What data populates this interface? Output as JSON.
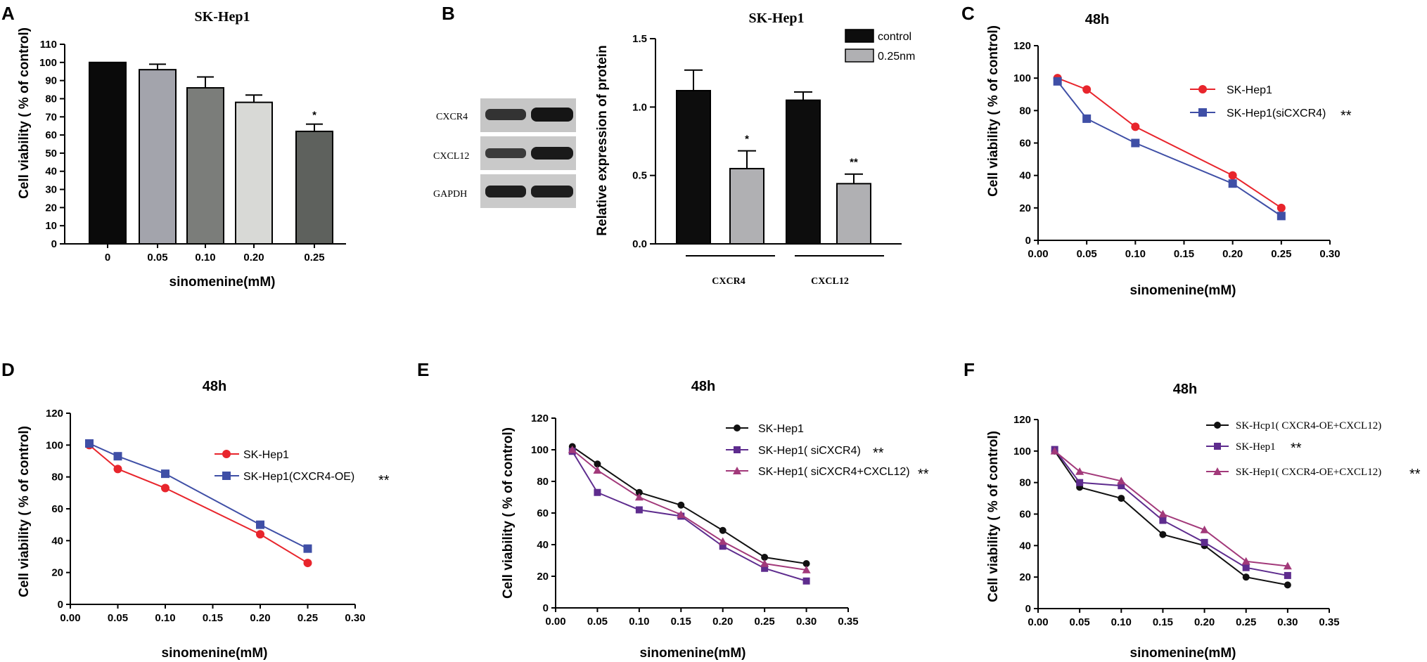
{
  "colors": {
    "bar_a": [
      "#0a0a0a",
      "#a3a4ac",
      "#7b7d7a",
      "#d8d9d6",
      "#5e615d"
    ],
    "control": "#0d0d0d",
    "treated": "#b0b0b3",
    "red": "#e8252c",
    "blue": "#3f4fa6",
    "black": "#111111",
    "purple": "#5e2c8e",
    "magenta": "#a2397a"
  },
  "chart_data": [
    {
      "id": "A",
      "panel_label": "A",
      "type": "bar",
      "title": "SK-Hep1",
      "xlabel": "sinomenine(mM)",
      "ylabel": "Cell viability ( % of control)",
      "categories": [
        "0",
        "0.05",
        "0.10",
        "0.20",
        "0.25"
      ],
      "values": [
        100,
        96,
        86,
        78,
        62
      ],
      "errors": [
        0,
        3,
        6,
        4,
        4
      ],
      "annotations": [
        "",
        "",
        "",
        "",
        "*"
      ],
      "ylim": [
        0,
        110
      ],
      "yticks": [
        "0",
        "10",
        "20",
        "30",
        "40",
        "50",
        "60",
        "70",
        "80",
        "90",
        "100",
        "110"
      ]
    },
    {
      "id": "B",
      "panel_label": "B",
      "type": "bar",
      "title": "SK-Hep1",
      "xlabel": "",
      "ylabel": "Relative expression of protein",
      "categories": [
        "CXCR4",
        "CXCL12"
      ],
      "series": [
        {
          "name": "control",
          "values": [
            1.12,
            1.05
          ],
          "errors": [
            0.15,
            0.06
          ],
          "annotations": [
            "",
            ""
          ]
        },
        {
          "name": "0.25nm",
          "values": [
            0.55,
            0.44
          ],
          "errors": [
            0.13,
            0.07
          ],
          "annotations": [
            "*",
            "**"
          ]
        }
      ],
      "ylim": [
        0,
        1.5
      ],
      "yticks": [
        "0.0",
        "0.5",
        "1.0",
        "1.5"
      ],
      "blot_labels": [
        "CXCR4",
        "CXCL12",
        "GAPDH"
      ]
    },
    {
      "id": "C",
      "panel_label": "C",
      "type": "line",
      "title": "48h",
      "xlabel": "sinomenine(mM)",
      "ylabel": "Cell viability ( % of control)",
      "xlim": [
        0,
        0.3
      ],
      "ylim": [
        0,
        120
      ],
      "xticks": [
        "0.00",
        "0.05",
        "0.10",
        "0.15",
        "0.20",
        "0.25",
        "0.30"
      ],
      "yticks": [
        "0",
        "20",
        "40",
        "60",
        "80",
        "100",
        "120"
      ],
      "series": [
        {
          "name": "SK-Hep1",
          "marker": "circle",
          "color": "#e8252c",
          "x": [
            0.02,
            0.05,
            0.1,
            0.2,
            0.25
          ],
          "y": [
            100,
            93,
            70,
            40,
            20
          ],
          "stars": ""
        },
        {
          "name": "SK-Hep1(siCXCR4)",
          "marker": "square",
          "color": "#3f4fa6",
          "x": [
            0.02,
            0.05,
            0.1,
            0.2,
            0.25
          ],
          "y": [
            98,
            75,
            60,
            35,
            15
          ],
          "stars": "**"
        }
      ]
    },
    {
      "id": "D",
      "panel_label": "D",
      "type": "line",
      "title": "48h",
      "xlabel": "sinomenine(mM)",
      "ylabel": "Cell viability ( % of control)",
      "xlim": [
        0,
        0.3
      ],
      "ylim": [
        0,
        120
      ],
      "xticks": [
        "0.00",
        "0.05",
        "0.10",
        "0.15",
        "0.20",
        "0.25",
        "0.30"
      ],
      "yticks": [
        "0",
        "20",
        "40",
        "60",
        "80",
        "100",
        "120"
      ],
      "series": [
        {
          "name": "SK-Hep1",
          "marker": "circle",
          "color": "#e8252c",
          "x": [
            0.02,
            0.05,
            0.1,
            0.2,
            0.25
          ],
          "y": [
            100,
            85,
            73,
            44,
            26
          ],
          "stars": ""
        },
        {
          "name": "SK-Hep1(CXCR4-OE)",
          "marker": "square",
          "color": "#3f4fa6",
          "x": [
            0.02,
            0.05,
            0.1,
            0.2,
            0.25
          ],
          "y": [
            101,
            93,
            82,
            50,
            35
          ],
          "stars": "**"
        }
      ]
    },
    {
      "id": "E",
      "panel_label": "E",
      "type": "line",
      "title": "48h",
      "xlabel": "sinomenine(mM)",
      "ylabel": "Cell viability ( % of control)",
      "xlim": [
        0,
        0.35
      ],
      "ylim": [
        0,
        120
      ],
      "xticks": [
        "0.00",
        "0.05",
        "0.10",
        "0.15",
        "0.20",
        "0.25",
        "0.30",
        "0.35"
      ],
      "yticks": [
        "0",
        "20",
        "40",
        "60",
        "80",
        "100",
        "120"
      ],
      "series": [
        {
          "name": "SK-Hep1",
          "marker": "circle",
          "color": "#111111",
          "x": [
            0.02,
            0.05,
            0.1,
            0.15,
            0.2,
            0.25,
            0.3
          ],
          "y": [
            102,
            91,
            73,
            65,
            49,
            32,
            28
          ],
          "stars": ""
        },
        {
          "name": "SK-Hep1( siCXCR4)",
          "marker": "square",
          "color": "#5e2c8e",
          "x": [
            0.02,
            0.05,
            0.1,
            0.15,
            0.2,
            0.25,
            0.3
          ],
          "y": [
            99,
            73,
            62,
            58,
            39,
            25,
            17
          ],
          "stars": "**"
        },
        {
          "name": "SK-Hep1( siCXCR4+CXCL12)",
          "marker": "triangle",
          "color": "#a2397a",
          "x": [
            0.02,
            0.05,
            0.1,
            0.15,
            0.2,
            0.25,
            0.3
          ],
          "y": [
            100,
            87,
            70,
            59,
            42,
            28,
            24
          ],
          "stars": "**"
        }
      ]
    },
    {
      "id": "F",
      "panel_label": "F",
      "type": "line",
      "title": "48h",
      "xlabel": "sinomenine(mM)",
      "ylabel": "Cell viability ( % of control)",
      "xlim": [
        0,
        0.35
      ],
      "ylim": [
        0,
        120
      ],
      "xticks": [
        "0.00",
        "0.05",
        "0.10",
        "0.15",
        "0.20",
        "0.25",
        "0.30",
        "0.35"
      ],
      "yticks": [
        "0",
        "20",
        "40",
        "60",
        "80",
        "100",
        "120"
      ],
      "series": [
        {
          "name": "SK-Hcp1( CXCR4-OE+CXCL12)",
          "marker": "circle",
          "color": "#111111",
          "x": [
            0.02,
            0.05,
            0.1,
            0.15,
            0.2,
            0.25,
            0.3
          ],
          "y": [
            100,
            77,
            70,
            47,
            40,
            20,
            15
          ],
          "stars": ""
        },
        {
          "name": "SK-Hep1",
          "marker": "square",
          "color": "#5e2c8e",
          "x": [
            0.02,
            0.05,
            0.1,
            0.15,
            0.2,
            0.25,
            0.3
          ],
          "y": [
            101,
            80,
            78,
            56,
            42,
            26,
            21
          ],
          "stars": "**"
        },
        {
          "name": "SK-Hep1( CXCR4-OE+CXCL12)",
          "marker": "triangle",
          "color": "#a2397a",
          "x": [
            0.02,
            0.05,
            0.1,
            0.15,
            0.2,
            0.25,
            0.3
          ],
          "y": [
            100,
            87,
            81,
            60,
            50,
            30,
            27
          ],
          "stars": "**"
        }
      ]
    }
  ]
}
